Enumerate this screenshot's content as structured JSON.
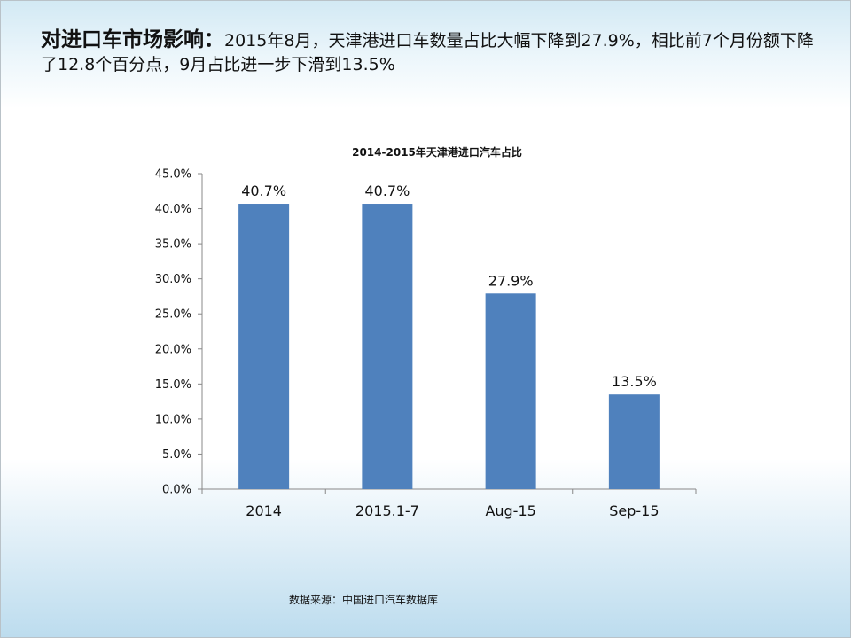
{
  "slide": {
    "heading_bold": "对进口车市场影响：",
    "heading_text": "2015年8月，天津港进口车数量占比大幅下降到27.9%，相比前7个月份额下降了12.8个百分点，9月占比进一步下滑到13.5%",
    "source": "数据来源：中国进口汽车数据库"
  },
  "chart_data": {
    "type": "bar",
    "title": "2014-2015年天津港进口汽车占比",
    "xlabel": "",
    "ylabel": "",
    "categories": [
      "2014",
      "2015.1-7",
      "Aug-15",
      "Sep-15"
    ],
    "values": [
      40.7,
      40.7,
      27.9,
      13.5
    ],
    "data_labels": [
      "40.7%",
      "40.7%",
      "27.9%",
      "13.5%"
    ],
    "ylim": [
      0,
      45
    ],
    "y_ticks": [
      "0.0%",
      "5.0%",
      "10.0%",
      "15.0%",
      "20.0%",
      "25.0%",
      "30.0%",
      "35.0%",
      "40.0%",
      "45.0%"
    ],
    "grid": false,
    "legend": "none",
    "bar_color": "#4f81bd"
  }
}
